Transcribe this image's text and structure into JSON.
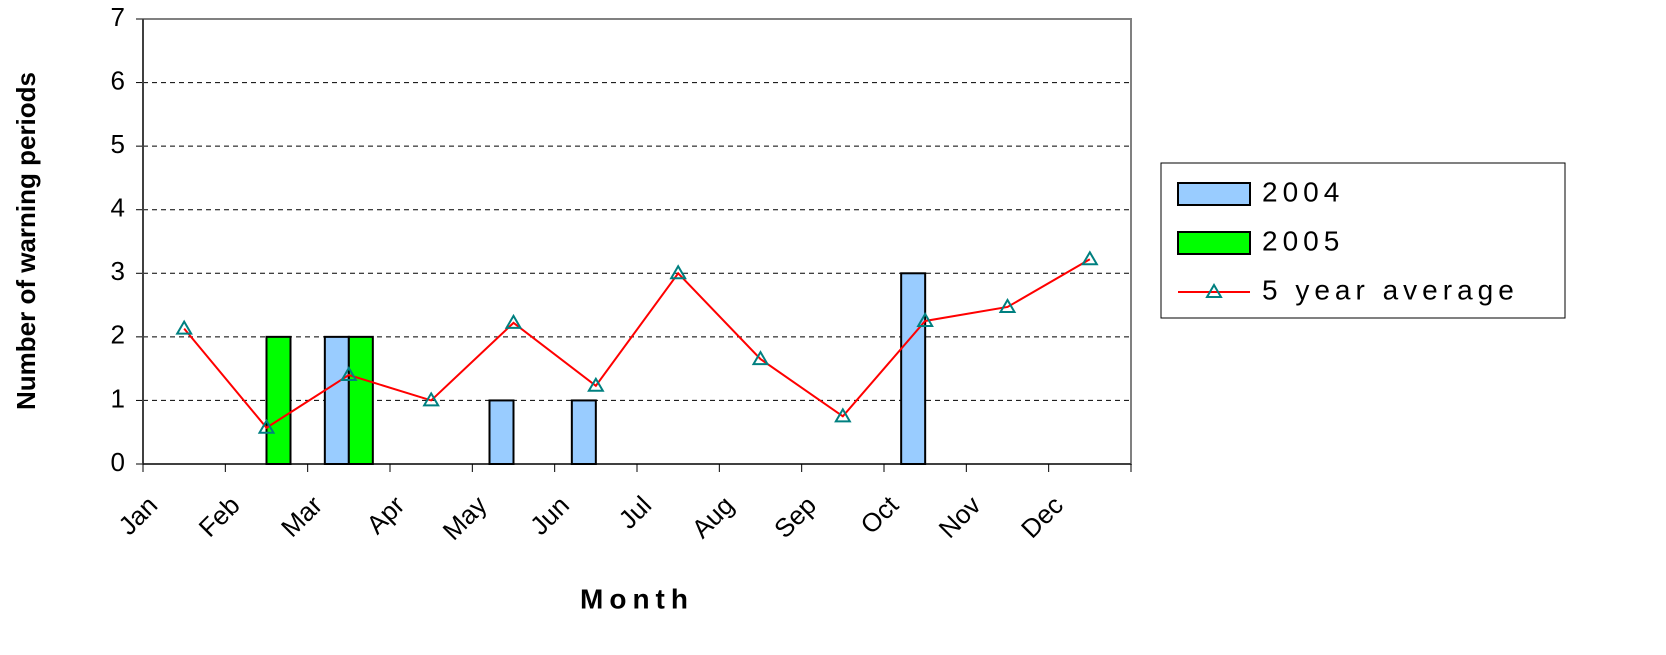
{
  "chart_data": {
    "type": "bar_line",
    "x_label": "Month",
    "y_label": "Number of warning periods",
    "categories": [
      "Jan",
      "Feb",
      "Mar",
      "Apr",
      "May",
      "Jun",
      "Jul",
      "Aug",
      "Sep",
      "Oct",
      "Nov",
      "Dec"
    ],
    "series": [
      {
        "name": "2004",
        "type": "bar",
        "color": "#99ccff",
        "values": [
          0,
          0,
          2,
          0,
          1,
          1,
          0,
          0,
          0,
          3,
          0,
          0
        ]
      },
      {
        "name": "2005",
        "type": "bar",
        "color": "#00ff00",
        "values": [
          0,
          2,
          2,
          0,
          0,
          0,
          0,
          0,
          0,
          0,
          0,
          0
        ]
      },
      {
        "name": "5 year average",
        "type": "line",
        "color": "#ff0000",
        "marker_color": "#008080",
        "values": [
          2.13,
          0.57,
          1.4,
          1.0,
          2.22,
          1.23,
          3.0,
          1.65,
          0.75,
          2.25,
          2.47,
          3.22
        ]
      }
    ],
    "ylim": [
      0,
      7
    ],
    "yticks": [
      0,
      1,
      2,
      3,
      4,
      5,
      6,
      7
    ],
    "grid": true,
    "legend": "right"
  }
}
